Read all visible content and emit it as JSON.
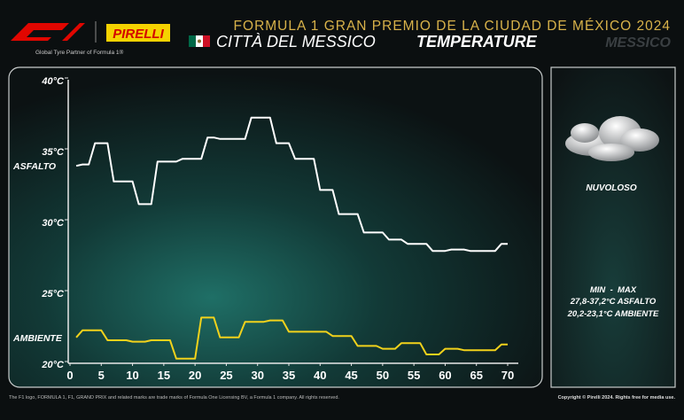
{
  "brand": {
    "logo_text": "PIRELLI",
    "partner": "Global Tyre Partner of Formula 1®"
  },
  "header": {
    "event": "FORMULA 1 GRAN PREMIO DE LA CIUDAD DE MÉXICO 2024",
    "city": "CITTÀ DEL MESSICO",
    "topic": "TEMPERATURE",
    "country": "MESSICO"
  },
  "side": {
    "condition": "NUVOLOSO",
    "range_title": "MIN  -  MAX",
    "asfalto_range": "27,8-37,2°C ASFALTO",
    "ambiente_range": "20,2-23,1°C AMBIENTE"
  },
  "footer": {
    "left": "The F1 logo, FORMULA 1, F1, GRAND PRIX and related marks are trade marks of Formula One Licensing BV, a Formula 1 company. All rights reserved.",
    "right": "Copyright © Pirelli 2024. Rights free for media use."
  },
  "chart_data": {
    "type": "line",
    "x": [
      1,
      2,
      3,
      4,
      5,
      6,
      7,
      8,
      9,
      10,
      11,
      12,
      13,
      14,
      15,
      16,
      17,
      18,
      19,
      20,
      21,
      22,
      23,
      24,
      25,
      26,
      27,
      28,
      29,
      30,
      31,
      32,
      33,
      34,
      35,
      36,
      37,
      38,
      39,
      40,
      41,
      42,
      43,
      44,
      45,
      46,
      47,
      48,
      49,
      50,
      51,
      52,
      53,
      54,
      55,
      56,
      57,
      58,
      59,
      60,
      61,
      62,
      63,
      64,
      65,
      66,
      67,
      68,
      69,
      70
    ],
    "series": [
      {
        "name": "ASFALTO",
        "color": "#ffffff",
        "values": [
          33.8,
          33.9,
          33.9,
          35.4,
          35.4,
          35.4,
          32.7,
          32.7,
          32.7,
          32.7,
          31.1,
          31.1,
          31.1,
          34.1,
          34.1,
          34.1,
          34.1,
          34.3,
          34.3,
          34.3,
          34.3,
          35.8,
          35.8,
          35.7,
          35.7,
          35.7,
          35.7,
          35.7,
          37.2,
          37.2,
          37.2,
          37.2,
          35.4,
          35.4,
          35.4,
          34.3,
          34.3,
          34.3,
          34.3,
          32.1,
          32.1,
          32.1,
          30.4,
          30.4,
          30.4,
          30.4,
          29.1,
          29.1,
          29.1,
          29.1,
          28.6,
          28.6,
          28.6,
          28.3,
          28.3,
          28.3,
          28.3,
          27.8,
          27.8,
          27.8,
          27.9,
          27.9,
          27.9,
          27.8,
          27.8,
          27.8,
          27.8,
          27.8,
          28.3,
          28.3
        ]
      },
      {
        "name": "AMBIENTE",
        "color": "#f2d21b",
        "values": [
          21.7,
          22.2,
          22.2,
          22.2,
          22.2,
          21.5,
          21.5,
          21.5,
          21.5,
          21.4,
          21.4,
          21.4,
          21.5,
          21.5,
          21.5,
          21.5,
          20.2,
          20.2,
          20.2,
          20.2,
          23.1,
          23.1,
          23.1,
          21.7,
          21.7,
          21.7,
          21.7,
          22.8,
          22.8,
          22.8,
          22.8,
          22.9,
          22.9,
          22.9,
          22.1,
          22.1,
          22.1,
          22.1,
          22.1,
          22.1,
          22.1,
          21.8,
          21.8,
          21.8,
          21.8,
          21.1,
          21.1,
          21.1,
          21.1,
          20.9,
          20.9,
          20.9,
          21.3,
          21.3,
          21.3,
          21.3,
          20.5,
          20.5,
          20.5,
          20.9,
          20.9,
          20.9,
          20.8,
          20.8,
          20.8,
          20.8,
          20.8,
          20.8,
          21.2,
          21.2
        ]
      }
    ],
    "xlim": [
      0,
      70
    ],
    "xticks": [
      0,
      5,
      10,
      15,
      20,
      25,
      30,
      35,
      40,
      45,
      50,
      55,
      60,
      65,
      70
    ],
    "ylim": [
      20,
      40
    ],
    "yticks": [
      {
        "value": 20,
        "label": "20°C"
      },
      {
        "value": 25,
        "label": "25°C"
      },
      {
        "value": 30,
        "label": "30°C"
      },
      {
        "value": 35,
        "label": "35°C"
      },
      {
        "value": 40,
        "label": "40°C"
      }
    ],
    "grid": false
  }
}
